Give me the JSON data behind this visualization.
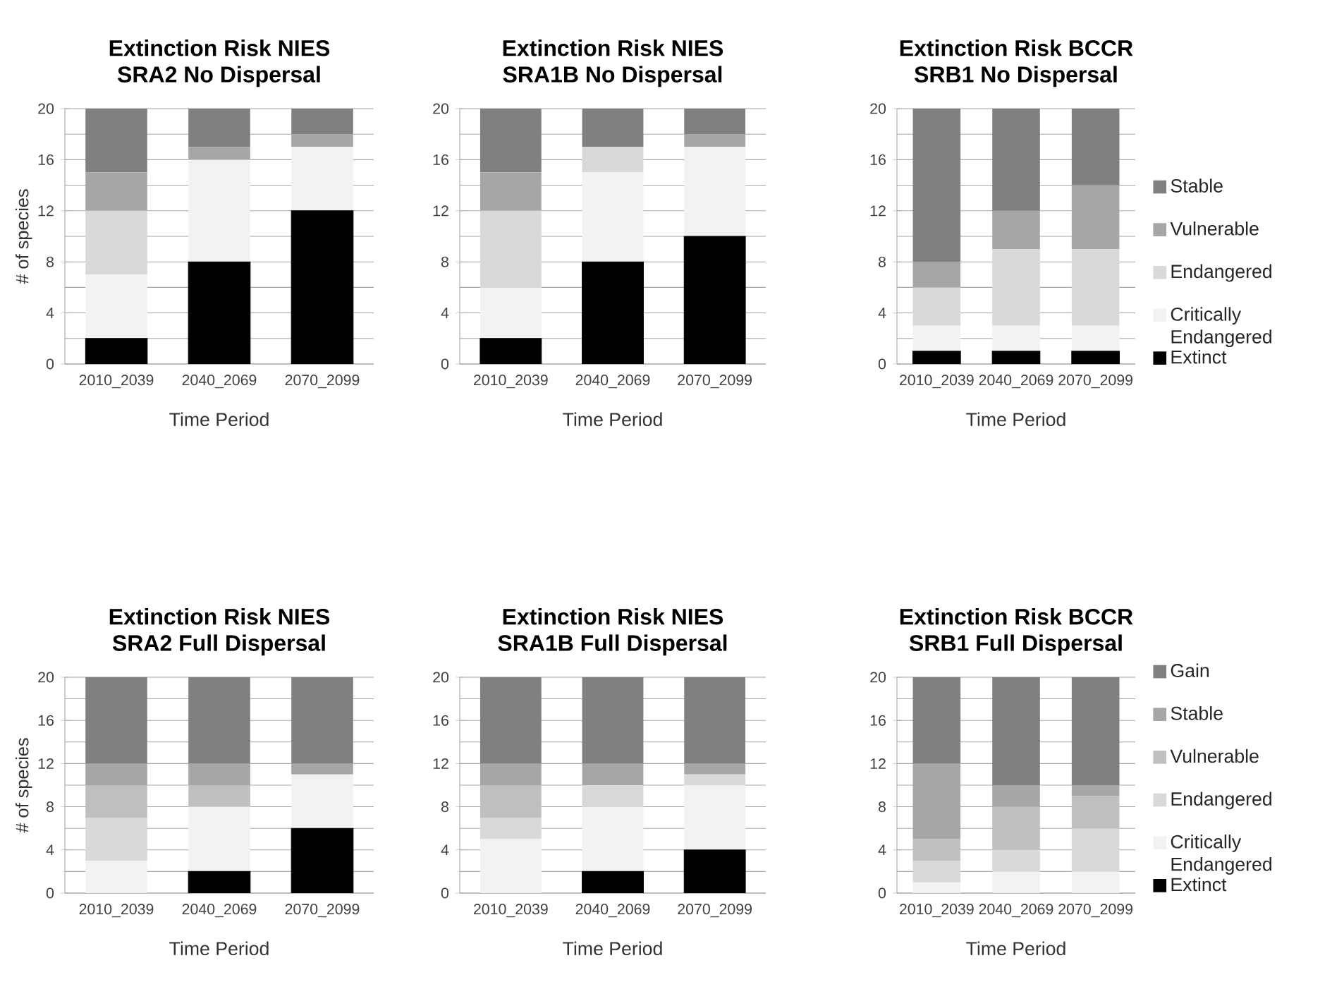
{
  "chart_data": [
    {
      "type": "bar",
      "stacked": true,
      "title": "Extinction Risk NIES",
      "subtitle": "SRA2 No Dispersal",
      "xlabel": "Time Period",
      "ylabel": "# of species",
      "categories": [
        "2010_2039",
        "2040_2069",
        "2070_2099"
      ],
      "ylim": [
        0,
        20
      ],
      "yticks": [
        0,
        4,
        8,
        12,
        16,
        20
      ],
      "grid": "y",
      "series": [
        {
          "color": "#000000",
          "values": [
            2,
            8,
            12
          ]
        },
        {
          "color": "#f2f2f2",
          "values": [
            5,
            8,
            5
          ]
        },
        {
          "color": "#d9d9d9",
          "values": [
            5,
            0,
            0
          ]
        },
        {
          "color": "#a6a6a6",
          "values": [
            3,
            1,
            1
          ]
        },
        {
          "color": "#808080",
          "values": [
            5,
            3,
            2
          ]
        }
      ]
    },
    {
      "type": "bar",
      "stacked": true,
      "title": "Extinction Risk NIES",
      "subtitle": "SRA1B No Dispersal",
      "xlabel": "Time Period",
      "categories": [
        "2010_2039",
        "2040_2069",
        "2070_2099"
      ],
      "ylim": [
        0,
        20
      ],
      "yticks": [
        0,
        4,
        8,
        12,
        16,
        20
      ],
      "grid": "y",
      "series": [
        {
          "color": "#000000",
          "values": [
            2,
            8,
            10
          ]
        },
        {
          "color": "#f2f2f2",
          "values": [
            4,
            7,
            7
          ]
        },
        {
          "color": "#d9d9d9",
          "values": [
            6,
            2,
            0
          ]
        },
        {
          "color": "#a6a6a6",
          "values": [
            3,
            0,
            1
          ]
        },
        {
          "color": "#808080",
          "values": [
            5,
            3,
            2
          ]
        }
      ]
    },
    {
      "type": "bar",
      "stacked": true,
      "title": "Extinction Risk BCCR",
      "subtitle": "SRB1 No Dispersal",
      "xlabel": "Time Period",
      "categories": [
        "2010_2039",
        "2040_2069",
        "2070_2099"
      ],
      "ylim": [
        0,
        20
      ],
      "yticks": [
        0,
        4,
        8,
        12,
        16,
        20
      ],
      "grid": "y",
      "legend": "right",
      "series": [
        {
          "name": "Extinct",
          "color": "#000000",
          "values": [
            1,
            1,
            1
          ]
        },
        {
          "name": "Critically Endangered",
          "color": "#f2f2f2",
          "values": [
            2,
            2,
            2
          ]
        },
        {
          "name": "Endangered",
          "color": "#d9d9d9",
          "values": [
            3,
            6,
            6
          ]
        },
        {
          "name": "Vulnerable",
          "color": "#a6a6a6",
          "values": [
            2,
            3,
            5
          ]
        },
        {
          "name": "Stable",
          "color": "#808080",
          "values": [
            12,
            8,
            6
          ]
        }
      ]
    },
    {
      "type": "bar",
      "stacked": true,
      "title": "Extinction Risk NIES",
      "subtitle": "SRA2 Full Dispersal",
      "xlabel": "Time Period",
      "ylabel": "# of species",
      "categories": [
        "2010_2039",
        "2040_2069",
        "2070_2099"
      ],
      "ylim": [
        0,
        20
      ],
      "yticks": [
        0,
        4,
        8,
        12,
        16,
        20
      ],
      "grid": "y",
      "series": [
        {
          "color": "#000000",
          "values": [
            0,
            2,
            6
          ]
        },
        {
          "color": "#f2f2f2",
          "values": [
            3,
            6,
            5
          ]
        },
        {
          "color": "#d9d9d9",
          "values": [
            4,
            0,
            0
          ]
        },
        {
          "color": "#bfbfbf",
          "values": [
            3,
            2,
            0
          ]
        },
        {
          "color": "#a6a6a6",
          "values": [
            2,
            2,
            1
          ]
        },
        {
          "color": "#808080",
          "values": [
            8,
            8,
            8
          ]
        }
      ]
    },
    {
      "type": "bar",
      "stacked": true,
      "title": "Extinction Risk NIES",
      "subtitle": "SRA1B Full Dispersal",
      "xlabel": "Time Period",
      "categories": [
        "2010_2039",
        "2040_2069",
        "2070_2099"
      ],
      "ylim": [
        0,
        20
      ],
      "yticks": [
        0,
        4,
        8,
        12,
        16,
        20
      ],
      "grid": "y",
      "series": [
        {
          "color": "#000000",
          "values": [
            0,
            2,
            4
          ]
        },
        {
          "color": "#f2f2f2",
          "values": [
            5,
            6,
            6
          ]
        },
        {
          "color": "#d9d9d9",
          "values": [
            2,
            2,
            1
          ]
        },
        {
          "color": "#bfbfbf",
          "values": [
            3,
            0,
            0
          ]
        },
        {
          "color": "#a6a6a6",
          "values": [
            2,
            2,
            1
          ]
        },
        {
          "color": "#808080",
          "values": [
            8,
            8,
            8
          ]
        }
      ]
    },
    {
      "type": "bar",
      "stacked": true,
      "title": "Extinction Risk BCCR",
      "subtitle": "SRB1 Full Dispersal",
      "xlabel": "Time Period",
      "categories": [
        "2010_2039",
        "2040_2069",
        "2070_2099"
      ],
      "ylim": [
        0,
        20
      ],
      "yticks": [
        0,
        4,
        8,
        12,
        16,
        20
      ],
      "grid": "y",
      "legend": "right",
      "series": [
        {
          "name": "Extinct",
          "color": "#000000",
          "values": [
            0,
            0,
            0
          ]
        },
        {
          "name": "Critically Endangered",
          "color": "#f2f2f2",
          "values": [
            1,
            2,
            2
          ]
        },
        {
          "name": "Endangered",
          "color": "#d9d9d9",
          "values": [
            2,
            2,
            4
          ]
        },
        {
          "name": "Vulnerable",
          "color": "#bfbfbf",
          "values": [
            2,
            4,
            3
          ]
        },
        {
          "name": "Stable",
          "color": "#a6a6a6",
          "values": [
            7,
            2,
            1
          ]
        },
        {
          "name": "Gain",
          "color": "#808080",
          "values": [
            8,
            10,
            10
          ]
        }
      ]
    }
  ]
}
